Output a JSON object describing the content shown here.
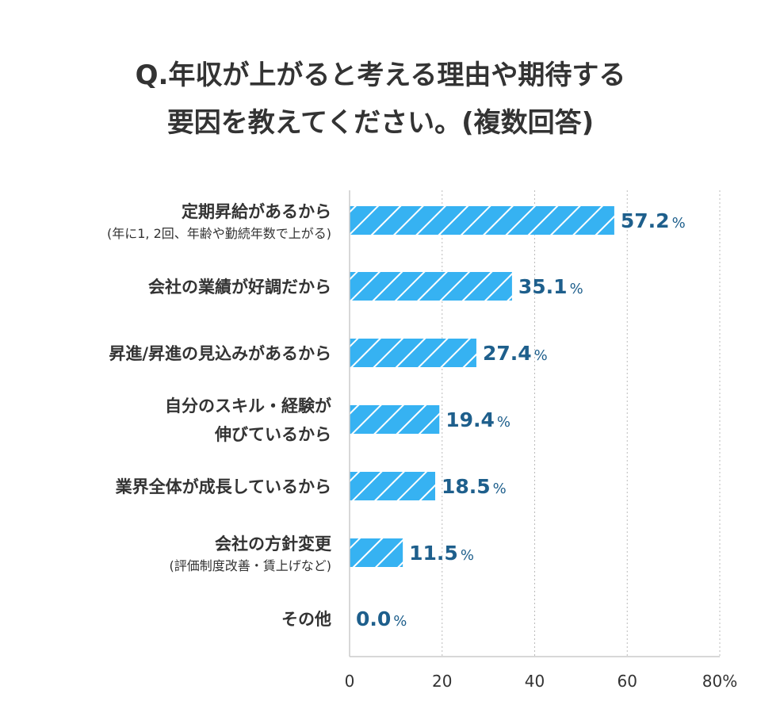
{
  "chart_data": {
    "type": "bar",
    "orientation": "horizontal",
    "title_lines": [
      "Q.年収が上がると考える理由や期待する",
      "要因を教えてください。(複数回答)"
    ],
    "categories": [
      {
        "label": "定期昇給があるから",
        "sublabel": "(年に1, 2回、年齢や勤続年数で上がる)"
      },
      {
        "label": "会社の業績が好調だから"
      },
      {
        "label": "昇進/昇進の見込みがあるから"
      },
      {
        "label": "自分のスキル・経験が",
        "label2": "伸びているから"
      },
      {
        "label": "業界全体が成長しているから"
      },
      {
        "label": "会社の方針変更",
        "sublabel": "(評価制度改善・賃上げなど)"
      },
      {
        "label": "その他"
      }
    ],
    "values": [
      57.2,
      35.1,
      27.4,
      19.4,
      18.5,
      11.5,
      0.0
    ],
    "value_labels": [
      "57.2",
      "35.1",
      "27.4",
      "19.4",
      "18.5",
      "11.5",
      "0.0"
    ],
    "value_unit": "%",
    "xlim": [
      0,
      80
    ],
    "x_ticks": [
      "0",
      "20",
      "40",
      "60",
      "80%"
    ],
    "grid": "vertical-dotted",
    "colors": {
      "bar": "#36b2f2",
      "hatch": "#ffffff",
      "value_text": "#1e5f8c",
      "grid": "#bbbbbb"
    }
  }
}
